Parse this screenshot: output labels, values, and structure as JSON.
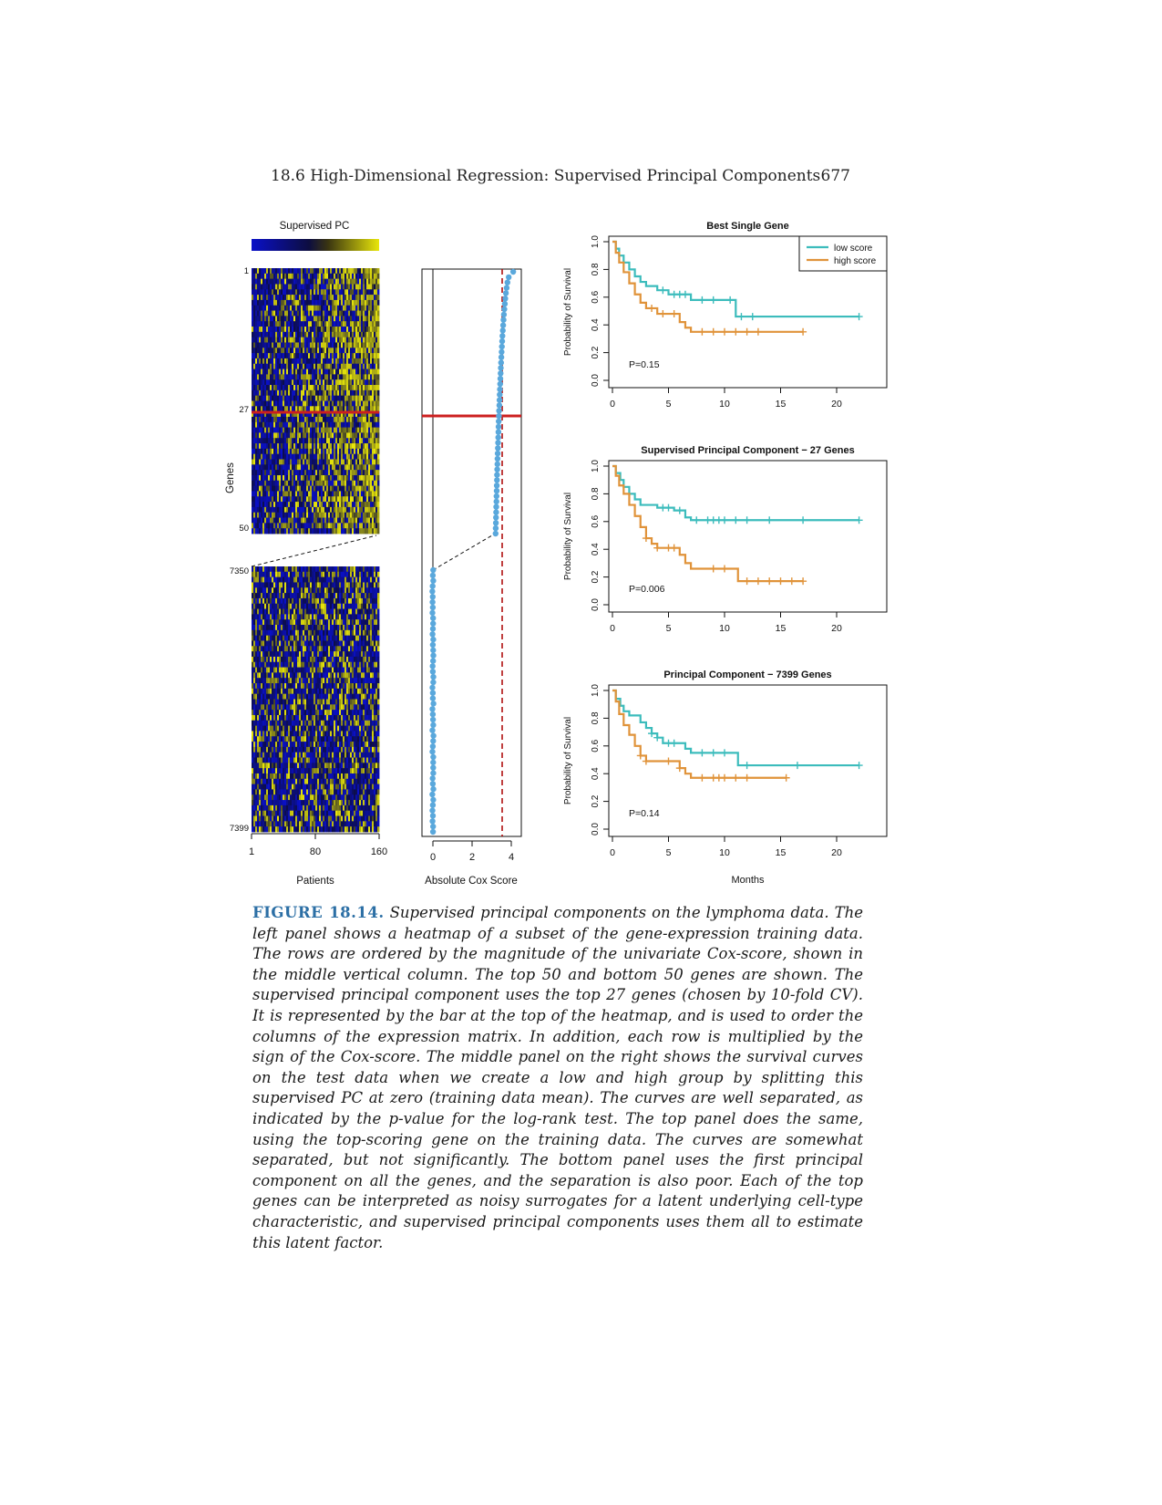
{
  "header": {
    "section_title": "18.6 High-Dimensional Regression: Supervised Principal Components",
    "page_number": "677"
  },
  "figure": {
    "heatmap": {
      "colorbar_label": "Supervised PC",
      "gene_axis_label": "Genes",
      "patients_axis_label": "Patients",
      "row_labels": {
        "top_first": "1",
        "cutoff": "27",
        "top_last": "50",
        "bottom_first": "7350",
        "bottom_last": "7399"
      },
      "patient_ticks": [
        "1",
        "80",
        "160"
      ],
      "colors": {
        "low": "#0a10c8",
        "mid": "#0d0d30",
        "high": "#e8e60a"
      }
    },
    "cox_panel": {
      "xlabel": "Absolute Cox Score",
      "ticks": [
        "0",
        "2",
        "4"
      ],
      "point_color": "#5aa8dc",
      "cutoff_line_color": "#cc1f1f",
      "threshold_color": "#b01010"
    },
    "survival_plots": [
      {
        "title": "Best Single Gene",
        "p_value": "P=0.15",
        "ylabel": "Probability of Survival",
        "x_ticks": [
          "0",
          "5",
          "10",
          "15",
          "20"
        ],
        "y_ticks": [
          "0.0",
          "0.2",
          "0.4",
          "0.6",
          "0.8",
          "1.0"
        ],
        "legend": [
          "low score",
          "high score"
        ]
      },
      {
        "title": "Supervised Principal Component − 27 Genes",
        "p_value": "P=0.006",
        "ylabel": "Probability of Survival",
        "x_ticks": [
          "0",
          "5",
          "10",
          "15",
          "20"
        ],
        "y_ticks": [
          "0.0",
          "0.2",
          "0.4",
          "0.6",
          "0.8",
          "1.0"
        ]
      },
      {
        "title": "Principal Component − 7399 Genes",
        "p_value": "P=0.14",
        "ylabel": "Probability of Survival",
        "x_ticks": [
          "0",
          "5",
          "10",
          "15",
          "20"
        ],
        "y_ticks": [
          "0.0",
          "0.2",
          "0.4",
          "0.6",
          "0.8",
          "1.0"
        ],
        "xlabel": "Months"
      }
    ],
    "series_colors": {
      "low": "#3cbcbc",
      "high": "#e0933a"
    }
  },
  "chart_data": [
    {
      "type": "line",
      "title": "Best Single Gene",
      "xlabel": "",
      "ylabel": "Probability of Survival",
      "xlim": [
        0,
        22
      ],
      "ylim": [
        0,
        1
      ],
      "series": [
        {
          "name": "low score",
          "steps": [
            [
              0,
              1.0
            ],
            [
              0.3,
              0.95
            ],
            [
              0.6,
              0.9
            ],
            [
              1.0,
              0.85
            ],
            [
              1.5,
              0.8
            ],
            [
              2.0,
              0.75
            ],
            [
              2.5,
              0.71
            ],
            [
              3.0,
              0.68
            ],
            [
              4.0,
              0.65
            ],
            [
              5.0,
              0.62
            ],
            [
              7.0,
              0.58
            ],
            [
              10.8,
              0.58
            ],
            [
              11.0,
              0.46
            ],
            [
              22.0,
              0.46
            ]
          ],
          "censored": [
            4.5,
            5.5,
            6.0,
            6.5,
            8.0,
            9.0,
            10.5,
            11.5,
            12.5,
            22.0
          ]
        },
        {
          "name": "high score",
          "steps": [
            [
              0,
              1.0
            ],
            [
              0.3,
              0.92
            ],
            [
              0.6,
              0.85
            ],
            [
              1.0,
              0.78
            ],
            [
              1.5,
              0.7
            ],
            [
              2.0,
              0.62
            ],
            [
              2.5,
              0.56
            ],
            [
              3.0,
              0.52
            ],
            [
              4.0,
              0.48
            ],
            [
              6.0,
              0.42
            ],
            [
              6.5,
              0.38
            ],
            [
              7.0,
              0.35
            ],
            [
              17.0,
              0.35
            ]
          ],
          "censored": [
            3.5,
            4.5,
            5.5,
            8.0,
            9.0,
            10.0,
            11.0,
            12.0,
            13.0,
            17.0
          ]
        }
      ]
    },
    {
      "type": "line",
      "title": "Supervised Principal Component − 27 Genes",
      "xlabel": "",
      "ylabel": "Probability of Survival",
      "xlim": [
        0,
        22
      ],
      "ylim": [
        0,
        1
      ],
      "series": [
        {
          "name": "low score",
          "steps": [
            [
              0,
              1.0
            ],
            [
              0.3,
              0.95
            ],
            [
              0.7,
              0.9
            ],
            [
              1.0,
              0.85
            ],
            [
              1.5,
              0.8
            ],
            [
              2.0,
              0.76
            ],
            [
              2.5,
              0.72
            ],
            [
              4.0,
              0.7
            ],
            [
              5.5,
              0.68
            ],
            [
              6.5,
              0.63
            ],
            [
              7.0,
              0.61
            ],
            [
              22.0,
              0.61
            ]
          ],
          "censored": [
            4.5,
            5.0,
            6.0,
            7.5,
            8.5,
            9.0,
            9.5,
            10.0,
            11.0,
            12.0,
            14.0,
            17.0,
            22.0
          ]
        },
        {
          "name": "high score",
          "steps": [
            [
              0,
              1.0
            ],
            [
              0.3,
              0.93
            ],
            [
              0.6,
              0.86
            ],
            [
              1.0,
              0.8
            ],
            [
              1.5,
              0.72
            ],
            [
              2.0,
              0.64
            ],
            [
              2.5,
              0.56
            ],
            [
              3.0,
              0.48
            ],
            [
              3.5,
              0.44
            ],
            [
              4.0,
              0.41
            ],
            [
              6.0,
              0.36
            ],
            [
              6.5,
              0.3
            ],
            [
              7.0,
              0.26
            ],
            [
              11.0,
              0.26
            ],
            [
              11.2,
              0.17
            ],
            [
              17.0,
              0.17
            ]
          ],
          "censored": [
            3.0,
            4.0,
            5.0,
            5.5,
            9.0,
            10.0,
            12.0,
            13.0,
            14.0,
            15.0,
            16.0,
            17.0
          ]
        }
      ]
    },
    {
      "type": "line",
      "title": "Principal Component − 7399 Genes",
      "xlabel": "Months",
      "ylabel": "Probability of Survival",
      "xlim": [
        0,
        22
      ],
      "ylim": [
        0,
        1
      ],
      "series": [
        {
          "name": "low score",
          "steps": [
            [
              0,
              1.0
            ],
            [
              0.3,
              0.94
            ],
            [
              0.7,
              0.89
            ],
            [
              1.0,
              0.85
            ],
            [
              1.5,
              0.82
            ],
            [
              2.5,
              0.77
            ],
            [
              3.0,
              0.73
            ],
            [
              3.5,
              0.69
            ],
            [
              4.0,
              0.66
            ],
            [
              4.5,
              0.62
            ],
            [
              6.5,
              0.58
            ],
            [
              7.0,
              0.55
            ],
            [
              11.0,
              0.55
            ],
            [
              11.2,
              0.46
            ],
            [
              22.0,
              0.46
            ]
          ],
          "censored": [
            3.5,
            4.0,
            5.0,
            5.5,
            8.0,
            9.0,
            10.0,
            12.0,
            16.5,
            22.0
          ]
        },
        {
          "name": "high score",
          "steps": [
            [
              0,
              1.0
            ],
            [
              0.3,
              0.92
            ],
            [
              0.6,
              0.83
            ],
            [
              1.0,
              0.75
            ],
            [
              1.5,
              0.68
            ],
            [
              2.0,
              0.6
            ],
            [
              2.5,
              0.53
            ],
            [
              3.0,
              0.49
            ],
            [
              6.0,
              0.44
            ],
            [
              6.5,
              0.4
            ],
            [
              7.0,
              0.37
            ],
            [
              15.5,
              0.37
            ]
          ],
          "censored": [
            2.5,
            3.0,
            5.0,
            6.0,
            8.0,
            9.0,
            9.5,
            10.0,
            11.0,
            12.0,
            15.5
          ]
        }
      ]
    }
  ],
  "caption": {
    "label": "FIGURE 18.14.",
    "text": "Supervised principal components on the lymphoma data. The left panel shows a heatmap of a subset of the gene-expression training data. The rows are ordered by the magnitude of the univariate Cox-score, shown in the middle vertical column. The top 50 and bottom 50 genes are shown. The supervised principal component uses the top 27 genes (chosen by 10-fold CV). It is represented by the bar at the top of the heatmap, and is used to order the columns of the expression matrix. In addition, each row is multiplied by the sign of the Cox-score. The middle panel on the right shows the survival curves on the test data when we create a low and high group by splitting this supervised PC at zero (training data mean). The curves are well separated, as indicated by the p-value for the log-rank test. The top panel does the same, using the top-scoring gene on the training data. The curves are somewhat separated, but not significantly. The bottom panel uses the first principal component on all the genes, and the separation is also poor. Each of the top genes can be interpreted as noisy surrogates for a latent underlying cell-type characteristic, and supervised principal components uses them all to estimate this latent factor."
  }
}
